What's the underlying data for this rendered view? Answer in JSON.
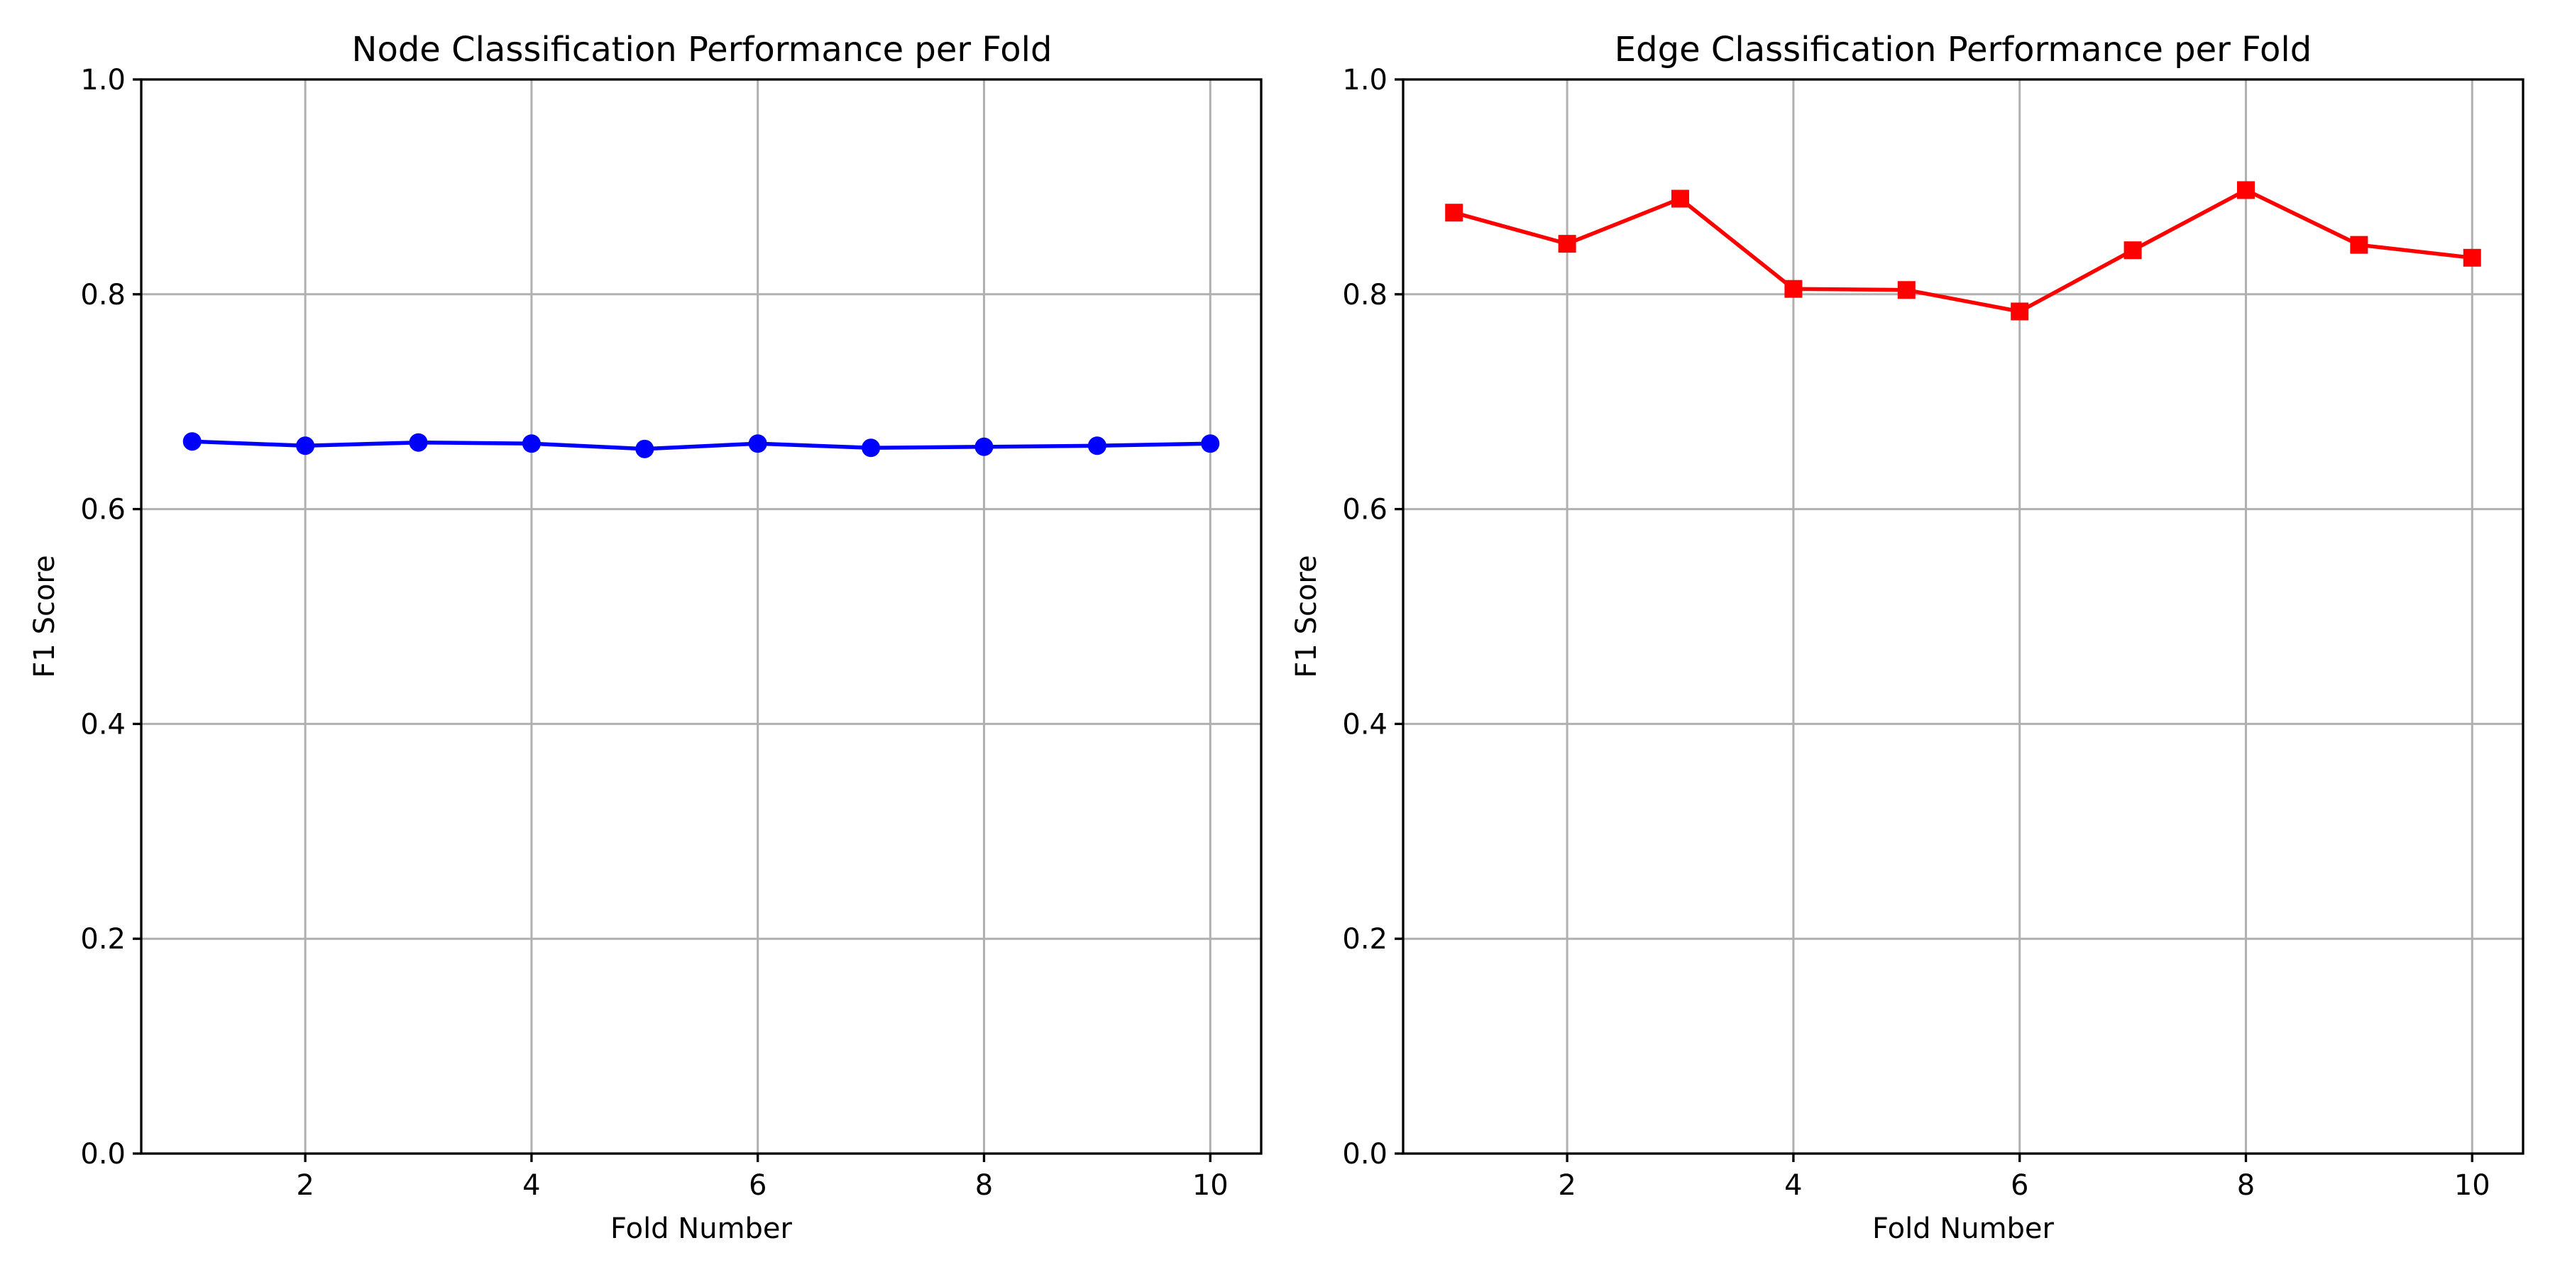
{
  "chart_data": [
    {
      "type": "line",
      "title": "Node Classification Performance per Fold",
      "xlabel": "Fold Number",
      "ylabel": "F1 Score",
      "xlim": [
        0.55,
        10.45
      ],
      "ylim": [
        0.0,
        1.0
      ],
      "xticks": [
        "2",
        "4",
        "6",
        "8",
        "10"
      ],
      "yticks": [
        "0.0",
        "0.2",
        "0.4",
        "0.6",
        "0.8",
        "1.0"
      ],
      "grid": true,
      "marker": "circle",
      "color": "#0000ff",
      "x": [
        1,
        2,
        3,
        4,
        5,
        6,
        7,
        8,
        9,
        10
      ],
      "series": [
        {
          "values": [
            0.663,
            0.659,
            0.662,
            0.661,
            0.656,
            0.661,
            0.657,
            0.658,
            0.659,
            0.661
          ]
        }
      ]
    },
    {
      "type": "line",
      "title": "Edge Classification Performance per Fold",
      "xlabel": "Fold Number",
      "ylabel": "F1 Score",
      "xlim": [
        0.55,
        10.45
      ],
      "ylim": [
        0.0,
        1.0
      ],
      "xticks": [
        "2",
        "4",
        "6",
        "8",
        "10"
      ],
      "yticks": [
        "0.0",
        "0.2",
        "0.4",
        "0.6",
        "0.8",
        "1.0"
      ],
      "grid": true,
      "marker": "square",
      "color": "#ff0000",
      "x": [
        1,
        2,
        3,
        4,
        5,
        6,
        7,
        8,
        9,
        10
      ],
      "series": [
        {
          "values": [
            0.876,
            0.847,
            0.889,
            0.805,
            0.804,
            0.784,
            0.841,
            0.897,
            0.846,
            0.834
          ]
        }
      ]
    }
  ]
}
